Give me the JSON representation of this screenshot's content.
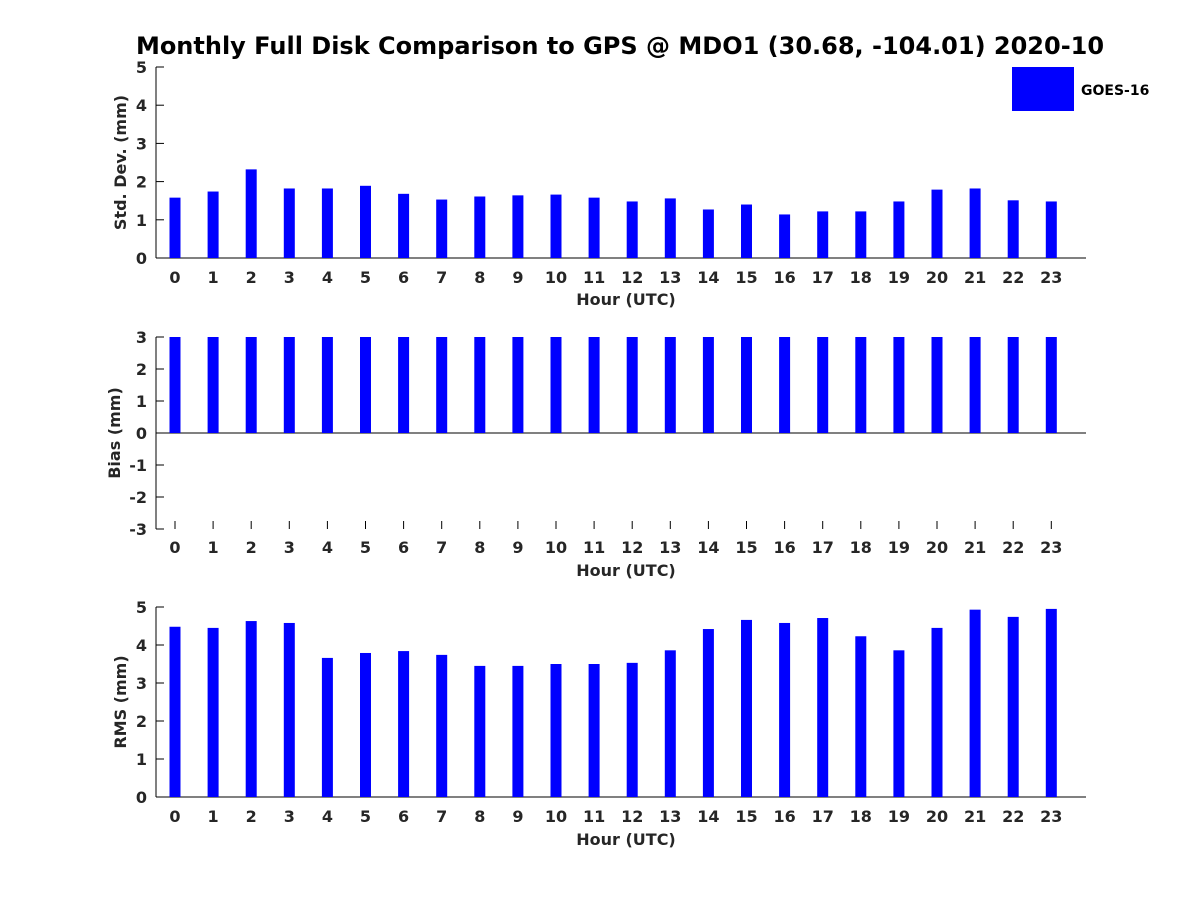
{
  "figure": {
    "title": "Monthly Full Disk Comparison to GPS @ MDO1 (30.68, -104.01) 2020-10",
    "legend": {
      "label": "GOES-16",
      "color": "#0000ff",
      "placement": "top-right"
    }
  },
  "chart_data": [
    {
      "type": "bar",
      "title": "Monthly Full Disk Comparison to GPS @ MDO1 (30.68, -104.01) 2020-10",
      "xlabel": "Hour (UTC)",
      "ylabel": "Std. Dev. (mm)",
      "ylim": [
        0,
        5
      ],
      "yticks": [
        0,
        1,
        2,
        3,
        4,
        5
      ],
      "categories": [
        "0",
        "1",
        "2",
        "3",
        "4",
        "5",
        "6",
        "7",
        "8",
        "9",
        "10",
        "11",
        "12",
        "13",
        "14",
        "15",
        "16",
        "17",
        "18",
        "19",
        "20",
        "21",
        "22",
        "23"
      ],
      "series": [
        {
          "name": "GOES-16",
          "color": "#0000ff",
          "values": [
            1.58,
            1.74,
            2.32,
            1.82,
            1.82,
            1.89,
            1.68,
            1.53,
            1.61,
            1.64,
            1.66,
            1.58,
            1.48,
            1.56,
            1.27,
            1.4,
            1.14,
            1.22,
            1.22,
            1.48,
            1.79,
            1.82,
            1.51,
            1.48
          ]
        }
      ],
      "legend": "top-right",
      "grid": false
    },
    {
      "type": "bar",
      "xlabel": "Hour (UTC)",
      "ylabel": "Bias (mm)",
      "ylim": [
        -3,
        3
      ],
      "yticks": [
        -3,
        -2,
        -1,
        0,
        1,
        2,
        3
      ],
      "categories": [
        "0",
        "1",
        "2",
        "3",
        "4",
        "5",
        "6",
        "7",
        "8",
        "9",
        "10",
        "11",
        "12",
        "13",
        "14",
        "15",
        "16",
        "17",
        "18",
        "19",
        "20",
        "21",
        "22",
        "23"
      ],
      "series": [
        {
          "name": "GOES-16",
          "color": "#0000ff",
          "values": [
            3,
            3,
            3,
            3,
            3,
            3,
            3,
            3,
            3,
            3,
            3,
            3,
            3,
            3,
            3,
            3,
            3,
            3,
            3,
            3,
            3,
            3,
            3,
            3
          ]
        }
      ],
      "grid": false
    },
    {
      "type": "bar",
      "xlabel": "Hour (UTC)",
      "ylabel": "RMS (mm)",
      "ylim": [
        0,
        5
      ],
      "yticks": [
        0,
        1,
        2,
        3,
        4,
        5
      ],
      "categories": [
        "0",
        "1",
        "2",
        "3",
        "4",
        "5",
        "6",
        "7",
        "8",
        "9",
        "10",
        "11",
        "12",
        "13",
        "14",
        "15",
        "16",
        "17",
        "18",
        "19",
        "20",
        "21",
        "22",
        "23"
      ],
      "series": [
        {
          "name": "GOES-16",
          "color": "#0000ff",
          "values": [
            4.48,
            4.45,
            4.63,
            4.58,
            3.66,
            3.79,
            3.84,
            3.74,
            3.45,
            3.45,
            3.5,
            3.5,
            3.53,
            3.86,
            4.42,
            4.66,
            4.58,
            4.71,
            4.23,
            3.86,
            4.45,
            4.93,
            4.74,
            4.95
          ]
        }
      ],
      "grid": false
    }
  ]
}
